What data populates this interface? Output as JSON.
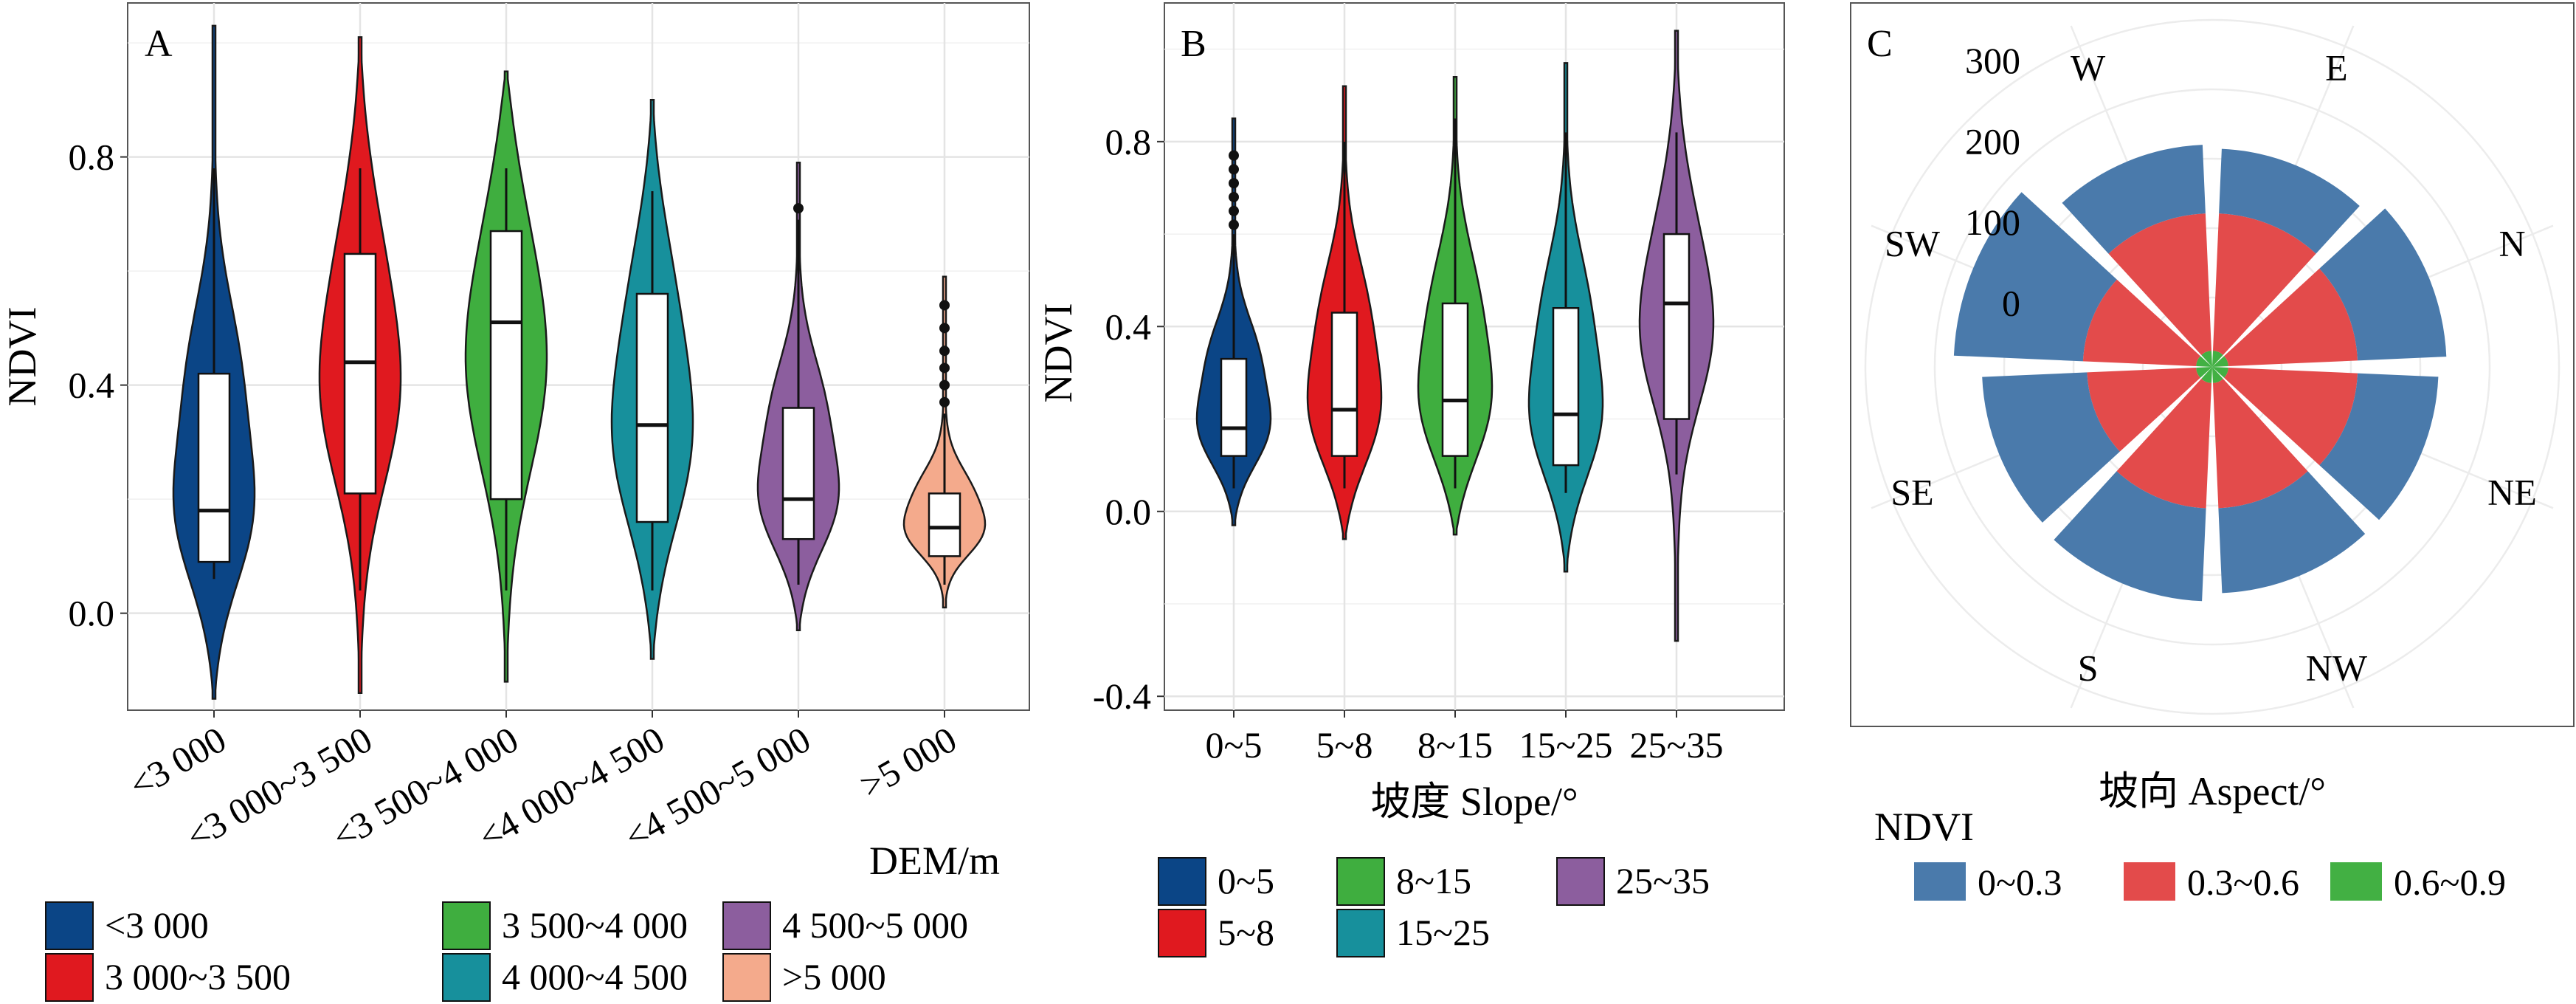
{
  "colors": {
    "dem": [
      "#0b4586",
      "#e0191f",
      "#3fae3f",
      "#17909c",
      "#8c5e9e",
      "#f4aa8c"
    ],
    "slope": [
      "#0b4586",
      "#e0191f",
      "#3fae3f",
      "#17909c",
      "#8c5e9e"
    ],
    "aspect": [
      "#4a7aab",
      "#e34b4b",
      "#42b043"
    ]
  },
  "chart_data": [
    {
      "type": "violin",
      "panel_label": "A",
      "ylabel": "NDVI",
      "xlabel": "",
      "ylim": [
        -0.17,
        1.07
      ],
      "yticks": [
        0.0,
        0.4,
        0.8
      ],
      "ytick_labels": [
        "0.0",
        "0.4",
        "0.8"
      ],
      "grid": true,
      "categories": [
        "<3 000",
        "<3 000~3 500",
        "<3 500~4 000",
        "<4 000~4 500",
        "<4 500~5 000",
        ">5 000"
      ],
      "legend": {
        "title": "DEM/m",
        "position": "bottom",
        "labels": [
          "<3 000",
          "3 000~3 500",
          "3 500~4 000",
          "4 000~4 500",
          "4 500~5 000",
          ">5 000"
        ]
      },
      "series": [
        {
          "min": -0.15,
          "max": 1.03,
          "q1": 0.09,
          "median": 0.18,
          "q3": 0.42,
          "whisker_low": 0.06,
          "whisker_high": 0.78,
          "outliers": []
        },
        {
          "min": -0.14,
          "max": 1.01,
          "q1": 0.21,
          "median": 0.44,
          "q3": 0.63,
          "whisker_low": 0.04,
          "whisker_high": 0.78,
          "outliers": []
        },
        {
          "min": -0.12,
          "max": 0.95,
          "q1": 0.2,
          "median": 0.51,
          "q3": 0.67,
          "whisker_low": 0.04,
          "whisker_high": 0.78,
          "outliers": []
        },
        {
          "min": -0.08,
          "max": 0.9,
          "q1": 0.16,
          "median": 0.33,
          "q3": 0.56,
          "whisker_low": 0.04,
          "whisker_high": 0.74,
          "outliers": []
        },
        {
          "min": -0.03,
          "max": 0.79,
          "q1": 0.13,
          "median": 0.2,
          "q3": 0.36,
          "whisker_low": 0.05,
          "whisker_high": 0.69,
          "outliers": [
            0.71
          ]
        },
        {
          "min": 0.01,
          "max": 0.59,
          "q1": 0.1,
          "median": 0.15,
          "q3": 0.21,
          "whisker_low": 0.05,
          "whisker_high": 0.35,
          "outliers": [
            0.37,
            0.4,
            0.43,
            0.46,
            0.5,
            0.54
          ]
        }
      ]
    },
    {
      "type": "violin",
      "panel_label": "B",
      "ylabel": "NDVI",
      "xlabel": "坡度 Slope/°",
      "ylim": [
        -0.43,
        1.1
      ],
      "yticks": [
        -0.4,
        0.0,
        0.4,
        0.8
      ],
      "ytick_labels": [
        "-0.4",
        "0.0",
        "0.4",
        "0.8"
      ],
      "grid": true,
      "categories": [
        "0~5",
        "5~8",
        "8~15",
        "15~25",
        "25~35"
      ],
      "legend": {
        "title": "",
        "position": "bottom",
        "labels": [
          "0~5",
          "5~8",
          "8~15",
          "15~25",
          "25~35"
        ]
      },
      "series": [
        {
          "min": -0.03,
          "max": 0.85,
          "q1": 0.12,
          "median": 0.18,
          "q3": 0.33,
          "whisker_low": 0.05,
          "whisker_high": 0.6,
          "outliers": [
            0.62,
            0.65,
            0.68,
            0.71,
            0.74,
            0.77
          ]
        },
        {
          "min": -0.06,
          "max": 0.92,
          "q1": 0.12,
          "median": 0.22,
          "q3": 0.43,
          "whisker_low": 0.05,
          "whisker_high": 0.8,
          "outliers": []
        },
        {
          "min": -0.05,
          "max": 0.94,
          "q1": 0.12,
          "median": 0.24,
          "q3": 0.45,
          "whisker_low": 0.05,
          "whisker_high": 0.85,
          "outliers": []
        },
        {
          "min": -0.13,
          "max": 0.97,
          "q1": 0.1,
          "median": 0.21,
          "q3": 0.44,
          "whisker_low": 0.04,
          "whisker_high": 0.82,
          "outliers": []
        },
        {
          "min": -0.28,
          "max": 1.04,
          "q1": 0.2,
          "median": 0.45,
          "q3": 0.6,
          "whisker_low": 0.08,
          "whisker_high": 0.82,
          "outliers": []
        }
      ]
    },
    {
      "type": "bar",
      "subtype": "polar_stacked",
      "panel_label": "C",
      "xlabel": "坡向 Aspect/°",
      "rlim": [
        -80,
        340
      ],
      "rticks": [
        0,
        100,
        200,
        300
      ],
      "rtick_labels": [
        "0",
        "100",
        "200",
        "300"
      ],
      "categories": [
        "E",
        "N",
        "NE",
        "NW",
        "S",
        "SE",
        "SW",
        "W"
      ],
      "legend": {
        "title": "NDVI",
        "position": "bottom",
        "labels": [
          "0~0.3",
          "0.3~0.6",
          "0.6~0.9"
        ]
      },
      "series": [
        {
          "name": "0.6~0.9",
          "values": [
            20,
            20,
            20,
            20,
            20,
            20,
            20,
            20
          ]
        },
        {
          "name": "0.3~0.6",
          "values": [
            170,
            160,
            160,
            155,
            155,
            135,
            140,
            170
          ]
        },
        {
          "name": "0~0.3",
          "values": [
            80,
            110,
            100,
            105,
            115,
            130,
            160,
            85
          ]
        }
      ]
    }
  ]
}
